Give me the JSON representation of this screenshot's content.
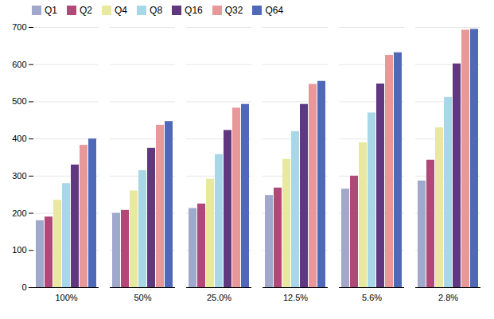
{
  "chart_data": {
    "type": "bar",
    "categories": [
      "100%",
      "50%",
      "25.0%",
      "12.5%",
      "5.6%",
      "2.8%"
    ],
    "series": [
      {
        "name": "Q1",
        "color": "#a0a8cc",
        "values": [
          180,
          200,
          213,
          248,
          265,
          287
        ]
      },
      {
        "name": "Q2",
        "color": "#b04878",
        "values": [
          190,
          208,
          225,
          268,
          300,
          343
        ]
      },
      {
        "name": "Q4",
        "color": "#e8e8a0",
        "values": [
          235,
          260,
          292,
          345,
          390,
          430
        ]
      },
      {
        "name": "Q8",
        "color": "#a8d8e8",
        "values": [
          280,
          315,
          358,
          420,
          470,
          512
        ]
      },
      {
        "name": "Q16",
        "color": "#603880",
        "values": [
          330,
          375,
          423,
          493,
          548,
          602
        ]
      },
      {
        "name": "Q32",
        "color": "#e89898",
        "values": [
          383,
          437,
          483,
          547,
          625,
          693
        ]
      },
      {
        "name": "Q64",
        "color": "#5068b8",
        "values": [
          400,
          447,
          493,
          555,
          632,
          695
        ]
      }
    ],
    "ylim": [
      0,
      700
    ],
    "yticks": [
      0,
      100,
      200,
      300,
      400,
      500,
      600,
      700
    ],
    "grid": true,
    "legend": "upper left"
  }
}
